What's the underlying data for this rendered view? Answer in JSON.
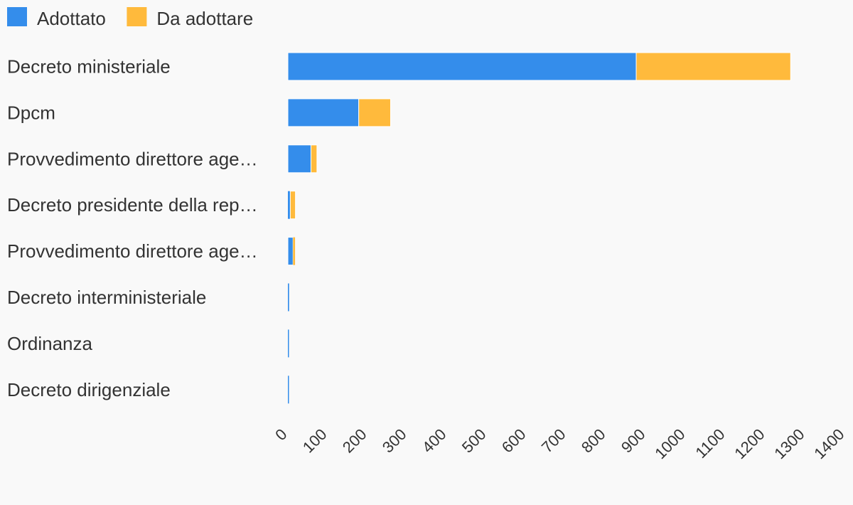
{
  "chart_data": {
    "type": "bar",
    "orientation": "horizontal",
    "stacked": true,
    "title": "",
    "xlabel": "",
    "ylabel": "",
    "legend_position": "top-left",
    "grid": false,
    "categories": [
      "Decreto ministeriale",
      "Dpcm",
      "Provvedimento direttore age…",
      "Decreto presidente della rep…",
      "Provvedimento direttore age…",
      "Decreto interministeriale",
      "Ordinanza",
      "Decreto dirigenziale"
    ],
    "series": [
      {
        "name": "Adottato",
        "color": "#348deb",
        "values": [
          875,
          178,
          58,
          6,
          13,
          3,
          1,
          1
        ]
      },
      {
        "name": "Da adottare",
        "color": "#ffba3c",
        "values": [
          388,
          80,
          15,
          13,
          5,
          0,
          0,
          0
        ]
      }
    ],
    "xlim": [
      0,
      1400
    ],
    "xticks": [
      "0",
      "100",
      "200",
      "300",
      "400",
      "500",
      "600",
      "700",
      "800",
      "900",
      "1000",
      "1100",
      "1200",
      "1300",
      "1400"
    ]
  }
}
